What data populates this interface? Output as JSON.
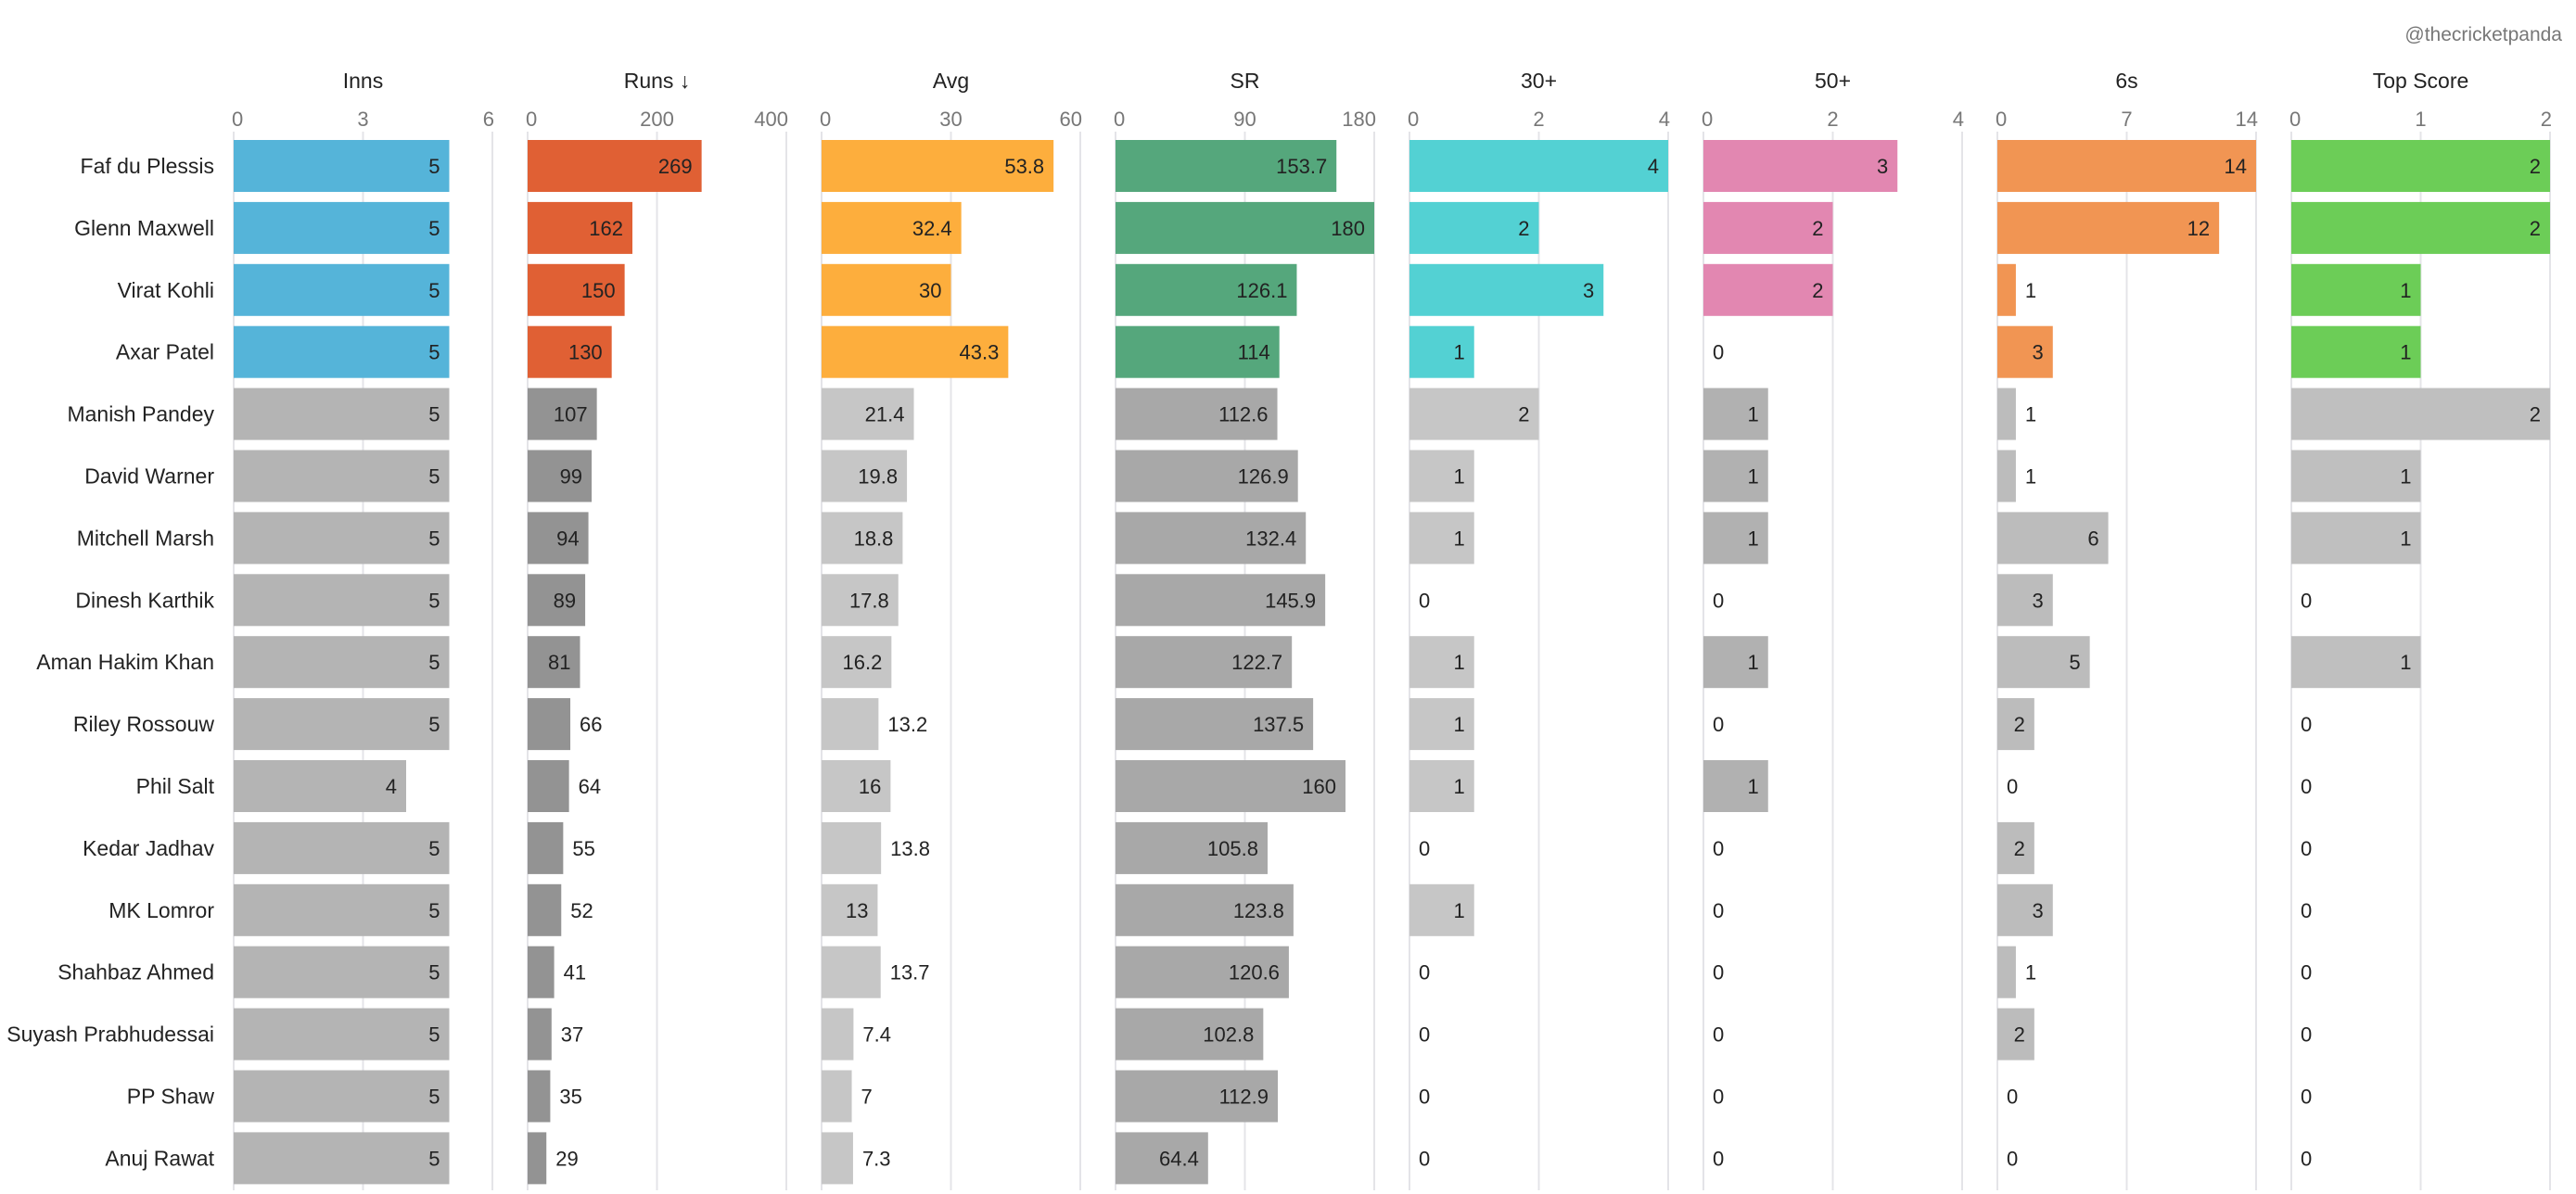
{
  "credit": "@thecricketpanda",
  "chart_data": {
    "type": "bar",
    "orientation": "horizontal",
    "layout": "small-multiples",
    "title": "",
    "credit": "@thecricketpanda",
    "sort": "Runs descending",
    "highlight_top_n": 4,
    "categories": [
      "Faf du Plessis",
      "Glenn Maxwell",
      "Virat Kohli",
      "Axar Patel",
      "Manish Pandey",
      "David Warner",
      "Mitchell Marsh",
      "Dinesh Karthik",
      "Aman Hakim Khan",
      "Riley Rossouw",
      "Phil Salt",
      "Kedar Jadhav",
      "MK Lomror",
      "Shahbaz Ahmed",
      "Suyash Prabhudessai",
      "PP Shaw",
      "Anuj Rawat"
    ],
    "series": [
      {
        "name": "Inns",
        "xlim": [
          0,
          6
        ],
        "ticks": [
          "0",
          "3",
          "6"
        ],
        "tick_values": [
          0,
          3,
          6
        ],
        "color": "#55b4d9",
        "grey": "#b4b4b4",
        "values": [
          5,
          5,
          5,
          5,
          5,
          5,
          5,
          5,
          5,
          5,
          4,
          5,
          5,
          5,
          5,
          5,
          5
        ]
      },
      {
        "name": "Runs ↓",
        "xlim": [
          0,
          400
        ],
        "ticks": [
          "0",
          "200",
          "400"
        ],
        "tick_values": [
          0,
          200,
          400
        ],
        "color": "#e06034",
        "grey": "#939393",
        "values": [
          269,
          162,
          150,
          130,
          107,
          99,
          94,
          89,
          81,
          66,
          64,
          55,
          52,
          41,
          37,
          35,
          29
        ]
      },
      {
        "name": "Avg",
        "xlim": [
          0,
          60
        ],
        "ticks": [
          "0",
          "30",
          "60"
        ],
        "tick_values": [
          0,
          30,
          60
        ],
        "color": "#fdae3d",
        "grey": "#c6c6c6",
        "values": [
          53.8,
          32.4,
          30,
          43.3,
          21.4,
          19.8,
          18.8,
          17.8,
          16.2,
          13.2,
          16,
          13.8,
          13,
          13.7,
          7.4,
          7,
          7.3
        ]
      },
      {
        "name": "SR",
        "xlim": [
          0,
          180
        ],
        "ticks": [
          "0",
          "90",
          "180"
        ],
        "tick_values": [
          0,
          90,
          180
        ],
        "color": "#55a77c",
        "grey": "#a8a8a8",
        "values": [
          153.7,
          180,
          126.1,
          114,
          112.6,
          126.9,
          132.4,
          145.9,
          122.7,
          137.5,
          160,
          105.8,
          123.8,
          120.6,
          102.8,
          112.9,
          64.4
        ]
      },
      {
        "name": "30+",
        "xlim": [
          0,
          4
        ],
        "ticks": [
          "0",
          "2",
          "4"
        ],
        "tick_values": [
          0,
          2,
          4
        ],
        "color": "#53d1d3",
        "grey": "#c6c6c6",
        "values": [
          4,
          2,
          3,
          1,
          2,
          1,
          1,
          0,
          1,
          1,
          1,
          0,
          1,
          0,
          0,
          0,
          0
        ]
      },
      {
        "name": "50+",
        "xlim": [
          0,
          4
        ],
        "ticks": [
          "0",
          "2",
          "4"
        ],
        "tick_values": [
          0,
          2,
          4
        ],
        "color": "#e287b1",
        "grey": "#b1b1b1",
        "values": [
          3,
          2,
          2,
          0,
          1,
          1,
          1,
          0,
          1,
          0,
          1,
          0,
          0,
          0,
          0,
          0,
          0
        ]
      },
      {
        "name": "6s",
        "xlim": [
          0,
          14
        ],
        "ticks": [
          "0",
          "7",
          "14"
        ],
        "tick_values": [
          0,
          7,
          14
        ],
        "color": "#f19553",
        "grey": "#bcbcbc",
        "values": [
          14,
          12,
          1,
          3,
          1,
          1,
          6,
          3,
          5,
          2,
          0,
          2,
          3,
          1,
          2,
          0,
          0
        ]
      },
      {
        "name": "Top Score",
        "xlim": [
          0,
          2
        ],
        "ticks": [
          "0",
          "1",
          "2"
        ],
        "tick_values": [
          0,
          1,
          2
        ],
        "color": "#6ccd57",
        "grey": "#bfbfbf",
        "values": [
          2,
          2,
          1,
          1,
          2,
          1,
          1,
          0,
          1,
          0,
          0,
          0,
          0,
          0,
          0,
          0,
          0
        ]
      }
    ],
    "grid": true,
    "legend": "none"
  }
}
